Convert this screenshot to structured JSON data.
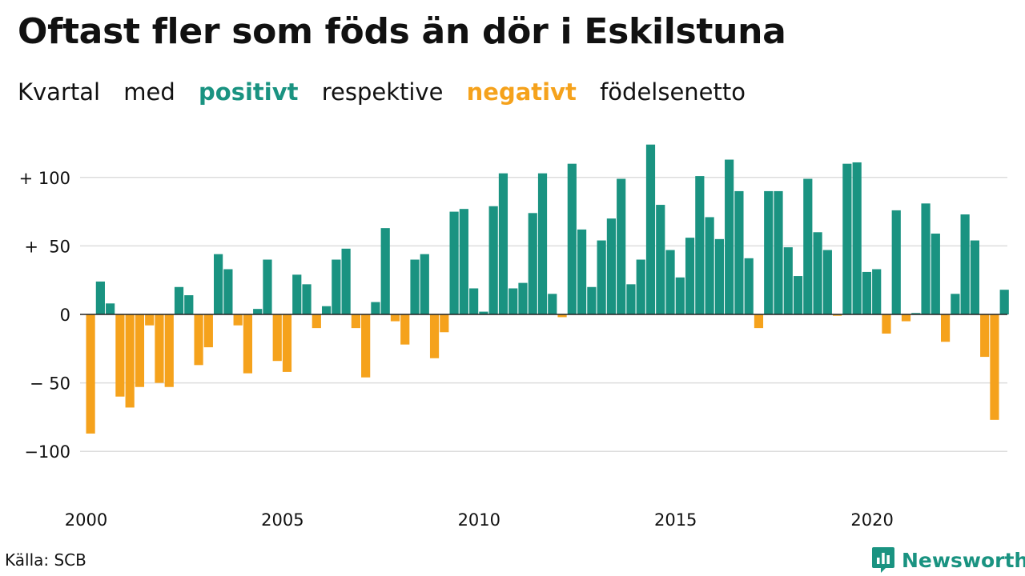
{
  "title": "Oftast fler som föds än dör i Eskilstuna",
  "subtitle": {
    "part1": "Kvartal",
    "part2": "med",
    "positive": "positivt",
    "part3": "respektive",
    "negative": "negativt",
    "part4": "födelsenetto"
  },
  "source": "Källa: SCB",
  "brand": {
    "name": "Newsworthy",
    "icon": "newsworthy-logo-icon"
  },
  "colors": {
    "positive": "#1a9381",
    "negative": "#f5a21c",
    "grid": "#dddddd",
    "zero": "#222222"
  },
  "chart_data": {
    "type": "bar",
    "start_year": 2000,
    "quarters_per_year": 4,
    "ylim": [
      -100,
      125
    ],
    "y_ticks": [
      {
        "value": 100,
        "label": "+ 100"
      },
      {
        "value": 50,
        "label": "+  50"
      },
      {
        "value": 0,
        "label": "0"
      },
      {
        "value": -50,
        "label": "− 50"
      },
      {
        "value": -100,
        "label": "−100"
      }
    ],
    "x_ticks": [
      {
        "year": 2000,
        "label": "2000"
      },
      {
        "year": 2005,
        "label": "2005"
      },
      {
        "year": 2010,
        "label": "2010"
      },
      {
        "year": 2015,
        "label": "2015"
      },
      {
        "year": 2020,
        "label": "2020"
      }
    ],
    "grid": true,
    "values": [
      -87,
      24,
      8,
      -60,
      -68,
      -53,
      -8,
      -50,
      -53,
      20,
      14,
      -37,
      -24,
      44,
      33,
      -8,
      -43,
      4,
      40,
      -34,
      -42,
      29,
      22,
      -10,
      6,
      40,
      48,
      -10,
      -46,
      9,
      63,
      -5,
      -22,
      40,
      44,
      -32,
      -13,
      75,
      77,
      19,
      2,
      79,
      103,
      19,
      23,
      74,
      103,
      15,
      -2,
      110,
      62,
      20,
      54,
      70,
      99,
      22,
      40,
      124,
      80,
      47,
      27,
      56,
      101,
      71,
      55,
      113,
      90,
      41,
      -10,
      90,
      90,
      49,
      28,
      99,
      60,
      47,
      -1,
      110,
      111,
      31,
      33,
      -14,
      76,
      -5,
      1,
      81,
      59,
      -20,
      15,
      73,
      54,
      -31,
      -77,
      18
    ]
  }
}
